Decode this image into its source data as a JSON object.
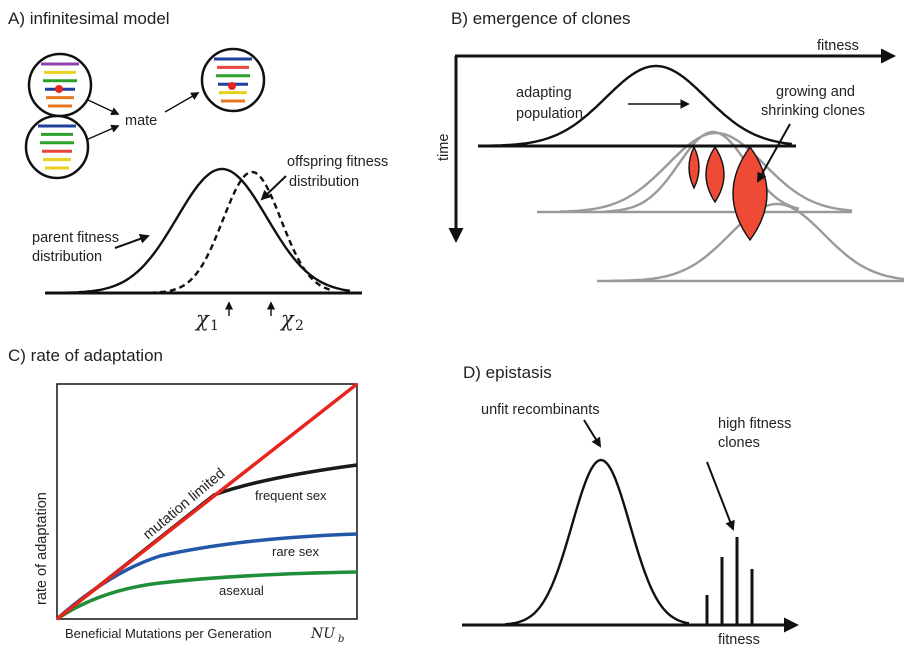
{
  "panels": {
    "a": {
      "title": "A) infinitesimal model",
      "mate_label": "mate",
      "offspring_label_1": "offspring fitness",
      "offspring_label_2": "distribution",
      "parent_label_1": "parent fitness",
      "parent_label_2": "distribution",
      "chi1_symbol": "χ",
      "chi1_sub": "1",
      "chi2_symbol": "χ",
      "chi2_sub": "2",
      "chromosome_colors_parent1": [
        "#8e44ad",
        "#e8d21d",
        "#2aa02b",
        "#1f3f9f",
        "#e8761d",
        "#e8761d"
      ],
      "chromosome_colors_parent2": [
        "#1f3f9f",
        "#2aa02b",
        "#2aa02b",
        "#e8453c",
        "#e8d21d",
        "#e8d21d"
      ],
      "chromosome_colors_offspring": [
        "#1f3f9f",
        "#e8453c",
        "#2aa02b",
        "#1f3f9f",
        "#e8d21d",
        "#e8761d"
      ],
      "marker_color": "#e8251d"
    },
    "b": {
      "title": "B) emergence of clones",
      "axis_x_label": "fitness",
      "axis_y_label": "time",
      "population_label_1": "adapting",
      "population_label_2": "population",
      "clones_label_1": "growing and",
      "clones_label_2": "shrinking clones",
      "clone_color": "#ef4a35"
    },
    "c": {
      "title": "C) rate of adaptation",
      "ylabel": "rate of adaptation",
      "xlabel_text": "Beneficial Mutations per Generation",
      "xlabel_math": "NU",
      "xlabel_math_sub": "b",
      "curves": [
        {
          "label": "mutation limited",
          "color": "#e8251d"
        },
        {
          "label": "frequent sex",
          "color": "#1a1a1a"
        },
        {
          "label": "rare sex",
          "color": "#2357a8"
        },
        {
          "label": "asexual",
          "color": "#1f8f3a"
        }
      ]
    },
    "d": {
      "title": "D) epistasis",
      "unfit_label": "unfit recombinants",
      "high_label_1": "high fitness",
      "high_label_2": "clones",
      "axis_x_label": "fitness"
    }
  }
}
